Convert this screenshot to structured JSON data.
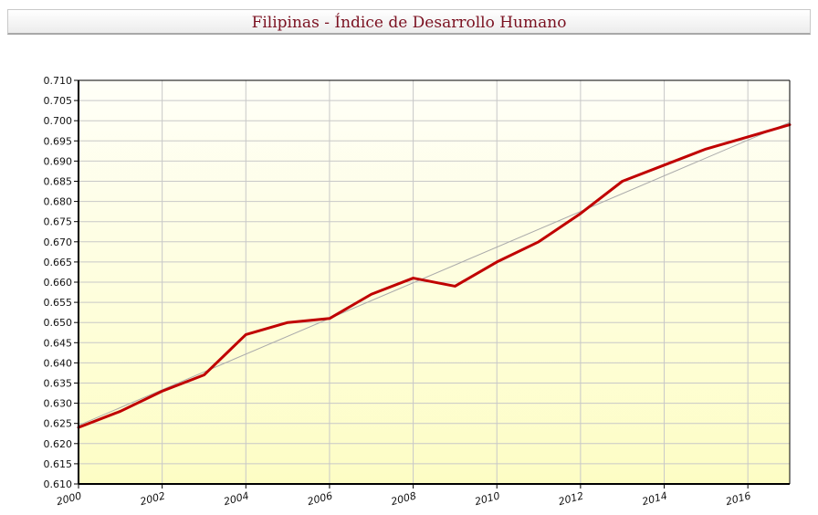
{
  "chart_data": {
    "type": "line",
    "title": "Filipinas - Índice de Desarrollo Humano",
    "xlabel": "",
    "ylabel": "",
    "x": [
      2000,
      2001,
      2002,
      2003,
      2004,
      2005,
      2006,
      2007,
      2008,
      2009,
      2010,
      2011,
      2012,
      2013,
      2014,
      2015,
      2016,
      2017
    ],
    "series": [
      {
        "values": [
          0.624,
          0.628,
          0.633,
          0.637,
          0.647,
          0.65,
          0.651,
          0.657,
          0.661,
          0.659,
          0.665,
          0.67,
          0.677,
          0.685,
          0.689,
          0.693,
          0.696,
          0.699
        ],
        "color": "#c00000"
      },
      {
        "values": [
          0.6245,
          0.6996
        ],
        "x": [
          2000,
          2017
        ],
        "color": "#aaaaaa",
        "style": "trend"
      }
    ],
    "xlim": [
      2000,
      2017
    ],
    "ylim": [
      0.61,
      0.71
    ],
    "x_ticks": [
      "2000",
      "2002",
      "2004",
      "2006",
      "2008",
      "2010",
      "2012",
      "2014",
      "2016"
    ],
    "y_ticks": [
      "0.610",
      "0.615",
      "0.620",
      "0.625",
      "0.630",
      "0.635",
      "0.640",
      "0.645",
      "0.650",
      "0.655",
      "0.660",
      "0.665",
      "0.670",
      "0.675",
      "0.680",
      "0.685",
      "0.690",
      "0.695",
      "0.700",
      "0.705",
      "0.710"
    ],
    "grid": true,
    "legend": "none",
    "colors": {
      "background_top": "#fffff8",
      "background_bottom": "#fdfdc4",
      "grid": "#c8c8c8"
    }
  }
}
